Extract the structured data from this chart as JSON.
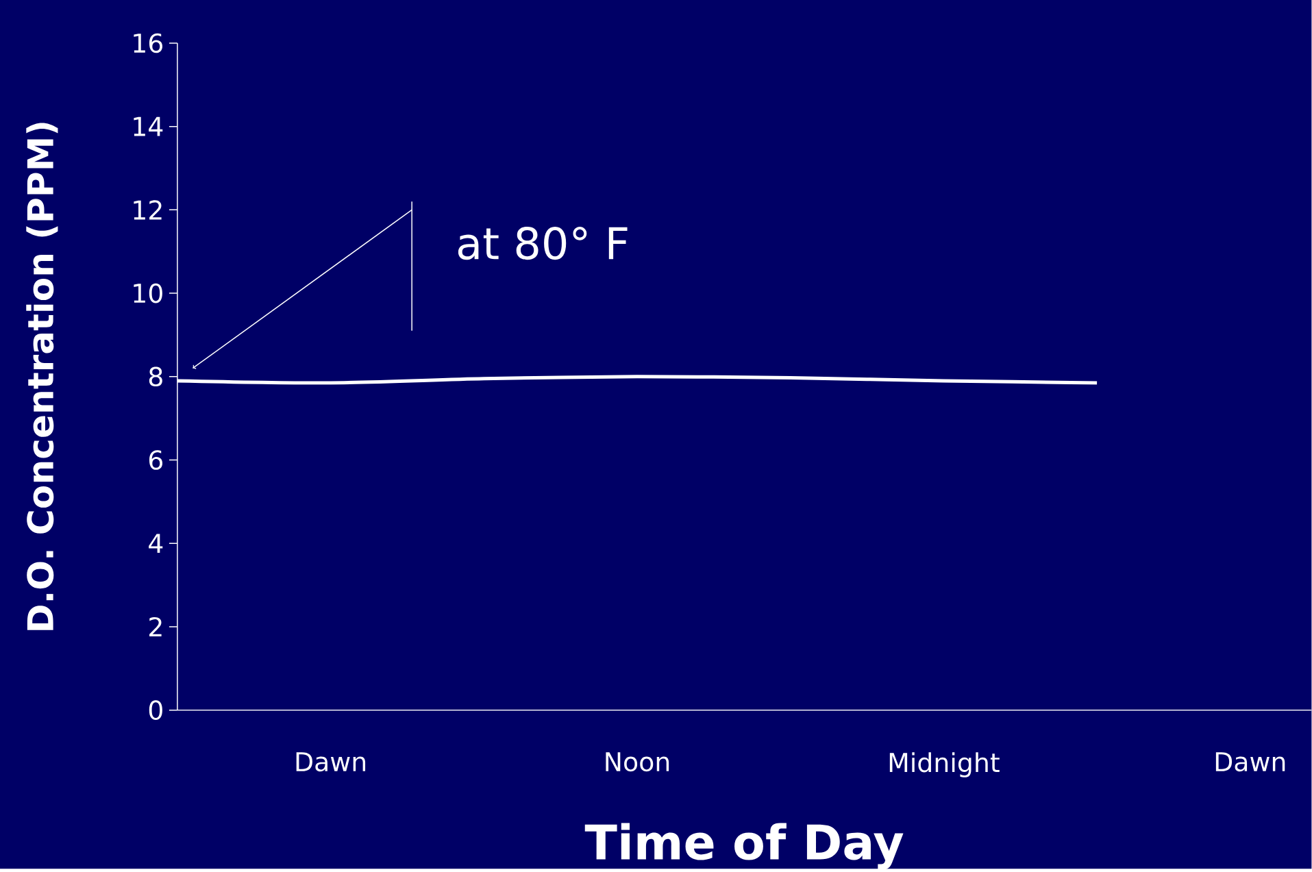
{
  "chart_data": {
    "type": "line",
    "xlabel": "Time of Day",
    "ylabel": "D.O. Concentration (PPM)",
    "categories": [
      null,
      "Dawn",
      null,
      "Noon",
      null,
      "Midnight",
      null,
      "Dawn"
    ],
    "series": [
      {
        "color": "#ffffff",
        "values": [
          7.9,
          7.85,
          7.95,
          8.0,
          7.97,
          7.9,
          7.85,
          null
        ]
      }
    ],
    "ylim": [
      0,
      16
    ],
    "yticks": [
      0,
      2,
      4,
      6,
      8,
      10,
      12,
      14,
      16
    ],
    "annotations": [
      "at 80° F"
    ],
    "marker": "none",
    "line_style": "solid"
  }
}
